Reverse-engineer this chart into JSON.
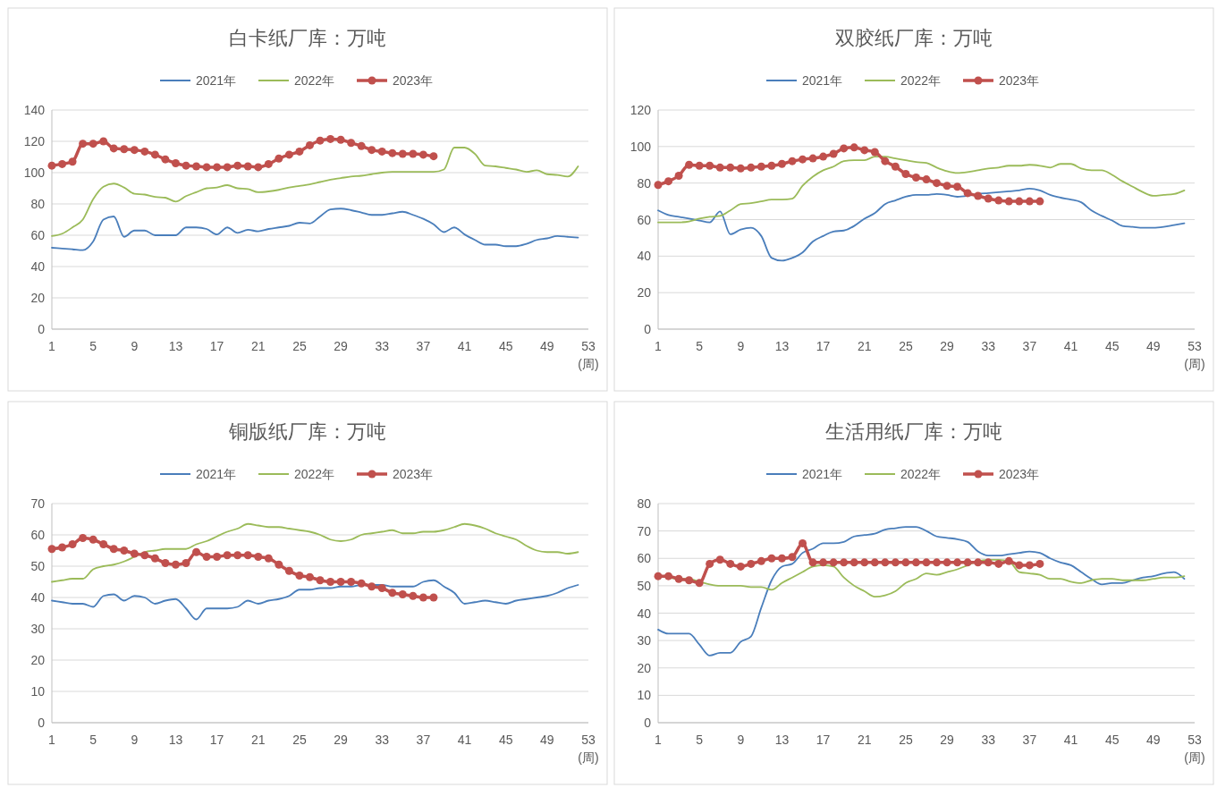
{
  "chart_data": [
    {
      "type": "line",
      "title": "白卡纸厂库：万吨",
      "xlabel": "(周)",
      "legend": "top",
      "grid": "y",
      "xlim": [
        1,
        53
      ],
      "xticks": [
        1,
        5,
        9,
        13,
        17,
        21,
        25,
        29,
        33,
        37,
        41,
        45,
        49,
        53
      ],
      "ylim": [
        0,
        140
      ],
      "yticks": [
        0,
        20,
        40,
        60,
        80,
        100,
        120,
        140
      ],
      "x": [
        1,
        2,
        3,
        4,
        5,
        6,
        7,
        8,
        9,
        10,
        11,
        12,
        13,
        14,
        15,
        16,
        17,
        18,
        19,
        20,
        21,
        22,
        23,
        24,
        25,
        26,
        27,
        28,
        29,
        30,
        31,
        32,
        33,
        34,
        35,
        36,
        37,
        38,
        39,
        40,
        41,
        42,
        43,
        44,
        45,
        46,
        47,
        48,
        49,
        50,
        51,
        52
      ],
      "series": [
        {
          "name": "2021年",
          "color": "#4a7ebb",
          "marker": "none",
          "values": [
            52,
            51.5,
            51,
            50.5,
            56,
            70,
            72,
            59,
            63,
            63,
            60,
            60,
            60,
            65,
            65,
            64,
            60.5,
            65,
            61.5,
            63.5,
            62.5,
            64,
            65,
            66,
            68,
            67.5,
            72,
            76.5,
            77,
            76,
            74.5,
            73,
            73,
            74,
            75,
            73,
            70.5,
            67,
            62,
            65,
            60.5,
            57,
            54,
            54,
            53,
            53,
            54.5,
            57,
            58,
            59.5,
            59,
            58.5
          ]
        },
        {
          "name": "2022年",
          "color": "#9bbb59",
          "marker": "none",
          "values": [
            59.5,
            61,
            65,
            70,
            83,
            91,
            93,
            90.5,
            86.5,
            86,
            84.5,
            84,
            81.5,
            85,
            87.5,
            90,
            90.5,
            92,
            90,
            89.5,
            87.5,
            88,
            89,
            90.5,
            91.5,
            92.5,
            94,
            95.5,
            96.5,
            97.5,
            98,
            99,
            100,
            100.5,
            100.5,
            100.5,
            100.5,
            100.5,
            102,
            116,
            116,
            112,
            104.5,
            104,
            103,
            102,
            100.5,
            101.5,
            99,
            98.5,
            97.5,
            104
          ]
        },
        {
          "name": "2023年",
          "color": "#c0504d",
          "marker": "circle",
          "x": [
            1,
            2,
            3,
            4,
            5,
            6,
            7,
            8,
            9,
            10,
            11,
            12,
            13,
            14,
            15,
            16,
            17,
            18,
            19,
            20,
            21,
            22,
            23,
            24,
            25,
            26,
            27,
            28,
            29,
            30,
            31,
            32,
            33,
            34,
            35,
            36,
            37,
            38
          ],
          "values": [
            104.5,
            105.5,
            107,
            118.5,
            118.5,
            120,
            115.5,
            115,
            114.5,
            113.5,
            111.5,
            108.5,
            106,
            104.5,
            104,
            103.5,
            103.5,
            103.5,
            104.5,
            104,
            103.5,
            105.5,
            109,
            111.5,
            113.5,
            117.5,
            120.5,
            121.5,
            121,
            119,
            117,
            114.5,
            113.5,
            112.5,
            112,
            112,
            111.5,
            110.5
          ]
        }
      ]
    },
    {
      "type": "line",
      "title": "双胶纸厂库：万吨",
      "xlabel": "(周)",
      "legend": "top",
      "grid": "y",
      "xlim": [
        1,
        53
      ],
      "xticks": [
        1,
        5,
        9,
        13,
        17,
        21,
        25,
        29,
        33,
        37,
        41,
        45,
        49,
        53
      ],
      "ylim": [
        0,
        120
      ],
      "yticks": [
        0,
        20,
        40,
        60,
        80,
        100,
        120
      ],
      "x": [
        1,
        2,
        3,
        4,
        5,
        6,
        7,
        8,
        9,
        10,
        11,
        12,
        13,
        14,
        15,
        16,
        17,
        18,
        19,
        20,
        21,
        22,
        23,
        24,
        25,
        26,
        27,
        28,
        29,
        30,
        31,
        32,
        33,
        34,
        35,
        36,
        37,
        38,
        39,
        40,
        41,
        42,
        43,
        44,
        45,
        46,
        47,
        48,
        49,
        50,
        51,
        52
      ],
      "series": [
        {
          "name": "2021年",
          "color": "#4a7ebb",
          "marker": "none",
          "values": [
            65,
            62.5,
            61.5,
            60.5,
            59.5,
            58.5,
            64.5,
            52,
            54.5,
            55.5,
            51,
            39,
            37.5,
            39,
            42,
            48,
            51,
            53.5,
            54,
            56.5,
            60.5,
            63.5,
            68.5,
            70.5,
            72.5,
            73.5,
            73.5,
            74,
            73.5,
            72.5,
            73,
            74,
            74.5,
            75,
            75.5,
            76,
            77,
            76,
            73.5,
            72,
            71,
            69.5,
            65,
            62,
            59.5,
            56.5,
            56,
            55.5,
            55.5,
            56,
            57,
            58
          ]
        },
        {
          "name": "2022年",
          "color": "#9bbb59",
          "marker": "none",
          "values": [
            58.5,
            58.5,
            58.5,
            59,
            60.5,
            61.5,
            62,
            65,
            68.5,
            69,
            70,
            71,
            71,
            71.5,
            78.5,
            83.5,
            87,
            89,
            92,
            92.5,
            92.5,
            94.5,
            94.5,
            93.5,
            92.5,
            91.5,
            91,
            88.5,
            86.5,
            85.5,
            86,
            87,
            88,
            88.5,
            89.5,
            89.5,
            90,
            89.5,
            88.5,
            90.5,
            90.5,
            88,
            87,
            87,
            84.5,
            81,
            78,
            75,
            73,
            73.5,
            74,
            76
          ]
        },
        {
          "name": "2023年",
          "color": "#c0504d",
          "marker": "circle",
          "x": [
            1,
            2,
            3,
            4,
            5,
            6,
            7,
            8,
            9,
            10,
            11,
            12,
            13,
            14,
            15,
            16,
            17,
            18,
            19,
            20,
            21,
            22,
            23,
            24,
            25,
            26,
            27,
            28,
            29,
            30,
            31,
            32,
            33,
            34,
            35,
            36,
            37,
            38
          ],
          "values": [
            79,
            81,
            84,
            90,
            89.5,
            89.5,
            88.5,
            88.5,
            88,
            88.5,
            89,
            89.5,
            90.5,
            92,
            93,
            93.5,
            94.5,
            96,
            99,
            99.5,
            98,
            97,
            92,
            89,
            85,
            83,
            82,
            80,
            78.5,
            78,
            74.5,
            73,
            71.5,
            70.5,
            70,
            70,
            70,
            70
          ]
        }
      ]
    },
    {
      "type": "line",
      "title": "铜版纸厂库：万吨",
      "xlabel": "(周)",
      "legend": "top",
      "grid": "y",
      "xlim": [
        1,
        53
      ],
      "xticks": [
        1,
        5,
        9,
        13,
        17,
        21,
        25,
        29,
        33,
        37,
        41,
        45,
        49,
        53
      ],
      "ylim": [
        0,
        70
      ],
      "yticks": [
        0,
        10,
        20,
        30,
        40,
        50,
        60,
        70
      ],
      "x": [
        1,
        2,
        3,
        4,
        5,
        6,
        7,
        8,
        9,
        10,
        11,
        12,
        13,
        14,
        15,
        16,
        17,
        18,
        19,
        20,
        21,
        22,
        23,
        24,
        25,
        26,
        27,
        28,
        29,
        30,
        31,
        32,
        33,
        34,
        35,
        36,
        37,
        38,
        39,
        40,
        41,
        42,
        43,
        44,
        45,
        46,
        47,
        48,
        49,
        50,
        51,
        52
      ],
      "series": [
        {
          "name": "2021年",
          "color": "#4a7ebb",
          "marker": "none",
          "values": [
            39,
            38.5,
            38,
            38,
            37,
            40.5,
            41,
            39,
            40.5,
            40,
            38,
            39,
            39.5,
            36.5,
            33,
            36.5,
            36.5,
            36.5,
            37,
            39,
            38,
            39,
            39.5,
            40.5,
            42.5,
            42.5,
            43,
            43,
            43.5,
            43.5,
            44,
            44,
            44,
            43.5,
            43.5,
            43.5,
            45,
            45.5,
            43.5,
            41.5,
            38,
            38.5,
            39,
            38.5,
            38,
            39,
            39.5,
            40,
            40.5,
            41.5,
            43,
            44
          ]
        },
        {
          "name": "2022年",
          "color": "#9bbb59",
          "marker": "none",
          "values": [
            45,
            45.5,
            46,
            46,
            49,
            50,
            50.5,
            51.5,
            53,
            54.5,
            55,
            55.5,
            55.5,
            55.5,
            57,
            58,
            59.5,
            61,
            62,
            63.5,
            63,
            62.5,
            62.5,
            62,
            61.5,
            61,
            60,
            58.5,
            58,
            58.5,
            60,
            60.5,
            61,
            61.5,
            60.5,
            60.5,
            61,
            61,
            61.5,
            62.5,
            63.5,
            63,
            62,
            60.5,
            59.5,
            58.5,
            56.5,
            55,
            54.5,
            54.5,
            54,
            54.5
          ]
        },
        {
          "name": "2023年",
          "color": "#c0504d",
          "marker": "circle",
          "x": [
            1,
            2,
            3,
            4,
            5,
            6,
            7,
            8,
            9,
            10,
            11,
            12,
            13,
            14,
            15,
            16,
            17,
            18,
            19,
            20,
            21,
            22,
            23,
            24,
            25,
            26,
            27,
            28,
            29,
            30,
            31,
            32,
            33,
            34,
            35,
            36,
            37,
            38
          ],
          "values": [
            55.5,
            56,
            57,
            59,
            58.5,
            57,
            55.5,
            55,
            54,
            53.5,
            52.5,
            51,
            50.5,
            51,
            54.5,
            53,
            53,
            53.5,
            53.5,
            53.5,
            53,
            52.5,
            50.5,
            48.5,
            47,
            46.5,
            45.5,
            45,
            45,
            45,
            44.5,
            43.5,
            43,
            41.5,
            41,
            40.5,
            40,
            40
          ]
        }
      ]
    },
    {
      "type": "line",
      "title": "生活用纸厂库：万吨",
      "xlabel": "(周)",
      "legend": "top",
      "grid": "y",
      "xlim": [
        1,
        53
      ],
      "xticks": [
        1,
        5,
        9,
        13,
        17,
        21,
        25,
        29,
        33,
        37,
        41,
        45,
        49,
        53
      ],
      "ylim": [
        0,
        80
      ],
      "yticks": [
        0,
        10,
        20,
        30,
        40,
        50,
        60,
        70,
        80
      ],
      "x": [
        1,
        2,
        3,
        4,
        5,
        6,
        7,
        8,
        9,
        10,
        11,
        12,
        13,
        14,
        15,
        16,
        17,
        18,
        19,
        20,
        21,
        22,
        23,
        24,
        25,
        26,
        27,
        28,
        29,
        30,
        31,
        32,
        33,
        34,
        35,
        36,
        37,
        38,
        39,
        40,
        41,
        42,
        43,
        44,
        45,
        46,
        47,
        48,
        49,
        50,
        51,
        52
      ],
      "series": [
        {
          "name": "2021年",
          "color": "#4a7ebb",
          "marker": "none",
          "values": [
            34,
            32.5,
            32.5,
            32.5,
            28.5,
            24.5,
            25.5,
            25.5,
            29.5,
            31.5,
            42,
            52,
            57,
            58,
            62,
            63.5,
            65.5,
            65.5,
            66,
            68,
            68.5,
            69,
            70.5,
            71,
            71.5,
            71.5,
            70,
            68,
            67.5,
            67,
            66,
            62.5,
            61,
            61,
            61.5,
            62,
            62.5,
            62,
            60,
            58.5,
            57.5,
            55,
            52.5,
            50.5,
            51,
            51,
            52,
            53,
            53.5,
            54.5,
            55,
            52.5
          ]
        },
        {
          "name": "2022年",
          "color": "#9bbb59",
          "marker": "none",
          "values": [
            53.5,
            53,
            52.5,
            52.5,
            51.5,
            50.5,
            50,
            50,
            50,
            49.5,
            49.5,
            48.5,
            51,
            53,
            55,
            57,
            57.5,
            57,
            53,
            50,
            48,
            46,
            46.5,
            48,
            51,
            52.5,
            54.5,
            54,
            55,
            56,
            57.5,
            59,
            59.5,
            59.5,
            59,
            55,
            54.5,
            54,
            52.5,
            52.5,
            51.5,
            51,
            52,
            52.5,
            52.5,
            52,
            52,
            52,
            52.5,
            53,
            53,
            53.5
          ]
        },
        {
          "name": "2023年",
          "color": "#c0504d",
          "marker": "circle",
          "x": [
            1,
            2,
            3,
            4,
            5,
            6,
            7,
            8,
            9,
            10,
            11,
            12,
            13,
            14,
            15,
            16,
            17,
            18,
            19,
            20,
            21,
            22,
            23,
            24,
            25,
            26,
            27,
            28,
            29,
            30,
            31,
            32,
            33,
            34,
            35,
            36,
            37,
            38
          ],
          "values": [
            53.5,
            53.5,
            52.5,
            52,
            51,
            58,
            59.5,
            58,
            57,
            58,
            59,
            60,
            60,
            60.5,
            65.5,
            58.5,
            58.5,
            58.5,
            58.5,
            58.5,
            58.5,
            58.5,
            58.5,
            58.5,
            58.5,
            58.5,
            58.5,
            58.5,
            58.5,
            58.5,
            58.5,
            58.5,
            58.5,
            58,
            59,
            57.5,
            57.5,
            58
          ]
        }
      ]
    }
  ]
}
